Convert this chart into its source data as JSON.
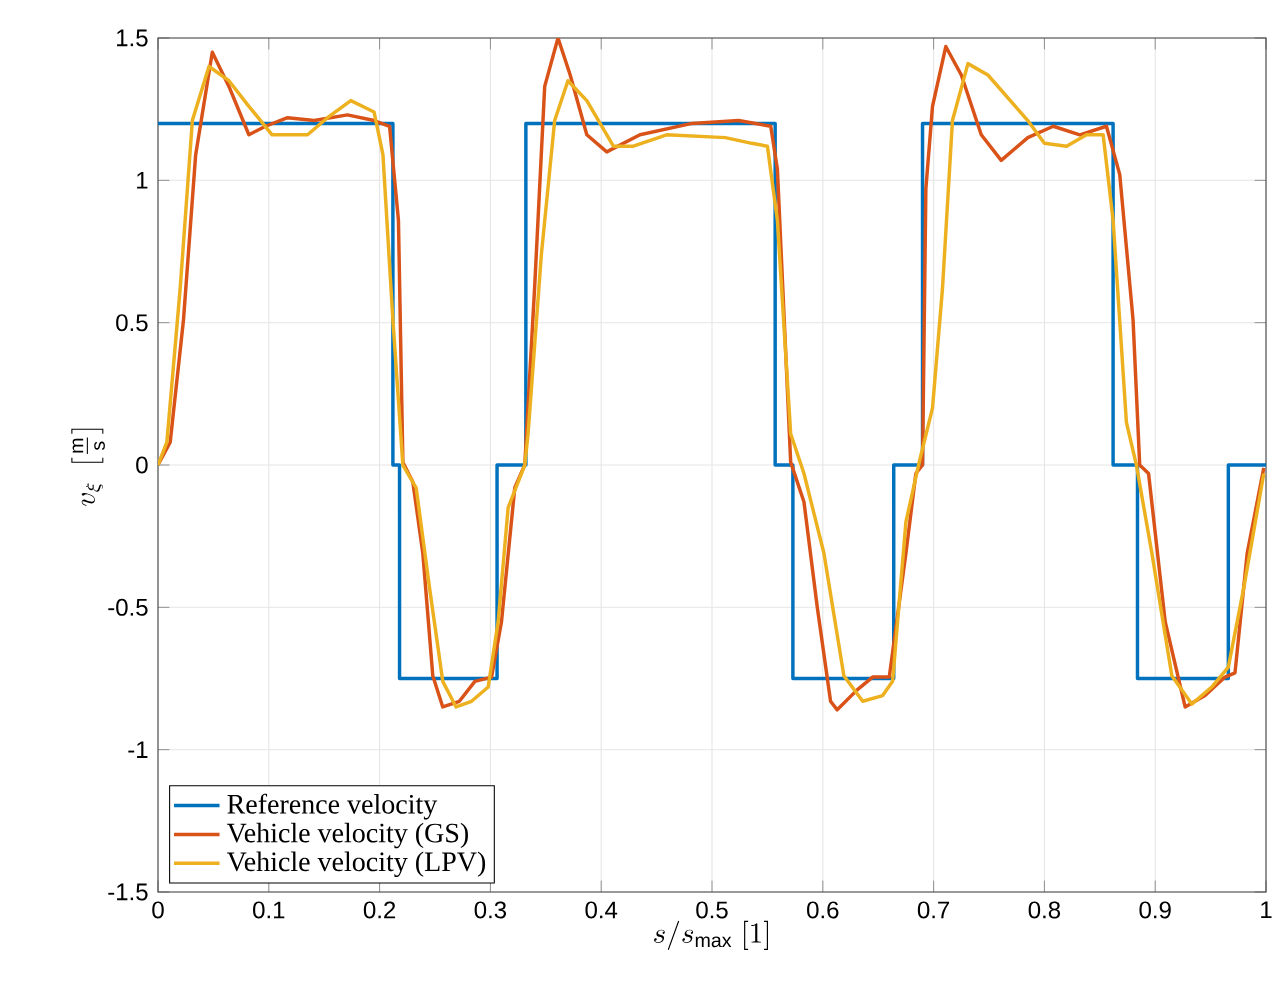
{
  "chart_data": {
    "type": "line",
    "xlabel": "s/s_{\\max}\\ [1]",
    "ylabel": "v_{\\xi}\\ \\left[\\frac{\\mathrm{m}}{\\mathrm{s}}\\right]",
    "xlim": [
      0,
      1
    ],
    "ylim": [
      -1.5,
      1.5
    ],
    "xticks": [
      0,
      0.1,
      0.2,
      0.3,
      0.4,
      0.5,
      0.6,
      0.7,
      0.8,
      0.9,
      1
    ],
    "yticks": [
      -1.5,
      -1,
      -0.5,
      0,
      0.5,
      1,
      1.5
    ],
    "grid": true,
    "legend": "bottom left",
    "series": [
      {
        "name": "Reference velocity",
        "type": "step",
        "color": "#0072bd",
        "x": [
          0,
          0.212,
          0.218,
          0.306,
          0.332,
          0.557,
          0.573,
          0.664,
          0.69,
          0.862,
          0.884,
          0.966,
          1
        ],
        "values": [
          1.2,
          0,
          -0.75,
          0,
          1.2,
          0,
          -0.75,
          0,
          1.2,
          0,
          -0.75,
          0,
          0
        ]
      },
      {
        "name": "Vehicle velocity (GS)",
        "color": "#d95319",
        "x": [
          0,
          0.011,
          0.023,
          0.034,
          0.049,
          0.064,
          0.082,
          0.097,
          0.117,
          0.141,
          0.171,
          0.195,
          0.209,
          0.217,
          0.221,
          0.23,
          0.239,
          0.248,
          0.257,
          0.272,
          0.286,
          0.301,
          0.31,
          0.322,
          0.331,
          0.34,
          0.349,
          0.361,
          0.372,
          0.387,
          0.405,
          0.435,
          0.482,
          0.524,
          0.553,
          0.559,
          0.571,
          0.583,
          0.595,
          0.607,
          0.613,
          0.631,
          0.645,
          0.66,
          0.675,
          0.684,
          0.69,
          0.693,
          0.699,
          0.711,
          0.725,
          0.743,
          0.761,
          0.785,
          0.808,
          0.832,
          0.856,
          0.868,
          0.88,
          0.886,
          0.894,
          0.909,
          0.927,
          0.945,
          0.963,
          0.972,
          0.983,
          0.998
        ],
        "values": [
          0,
          0.08,
          0.51,
          1.09,
          1.45,
          1.33,
          1.16,
          1.19,
          1.22,
          1.21,
          1.23,
          1.21,
          1.19,
          0.86,
          0.01,
          -0.06,
          -0.31,
          -0.74,
          -0.85,
          -0.83,
          -0.76,
          -0.745,
          -0.55,
          -0.08,
          0,
          0.63,
          1.33,
          1.5,
          1.37,
          1.16,
          1.1,
          1.16,
          1.2,
          1.21,
          1.19,
          1.04,
          0.01,
          -0.13,
          -0.5,
          -0.83,
          -0.86,
          -0.79,
          -0.745,
          -0.745,
          -0.31,
          -0.03,
          0,
          0.97,
          1.26,
          1.47,
          1.37,
          1.16,
          1.07,
          1.15,
          1.19,
          1.16,
          1.19,
          1.02,
          0.51,
          0,
          -0.03,
          -0.55,
          -0.85,
          -0.81,
          -0.745,
          -0.73,
          -0.31,
          -0.01
        ]
      },
      {
        "name": "Vehicle velocity (LPV)",
        "color": "#edb120",
        "x": [
          0,
          0.008,
          0.02,
          0.031,
          0.046,
          0.064,
          0.082,
          0.103,
          0.135,
          0.153,
          0.174,
          0.195,
          0.203,
          0.212,
          0.221,
          0.233,
          0.245,
          0.257,
          0.269,
          0.283,
          0.298,
          0.307,
          0.316,
          0.331,
          0.334,
          0.346,
          0.358,
          0.37,
          0.387,
          0.411,
          0.429,
          0.459,
          0.512,
          0.536,
          0.55,
          0.559,
          0.571,
          0.583,
          0.601,
          0.619,
          0.636,
          0.654,
          0.663,
          0.675,
          0.687,
          0.699,
          0.708,
          0.717,
          0.731,
          0.749,
          0.785,
          0.8,
          0.82,
          0.838,
          0.853,
          0.862,
          0.874,
          0.883,
          0.897,
          0.915,
          0.933,
          0.951,
          0.966,
          0.98,
          0.998
        ],
        "values": [
          0,
          0.08,
          0.62,
          1.21,
          1.4,
          1.35,
          1.26,
          1.16,
          1.16,
          1.22,
          1.28,
          1.24,
          1.09,
          0.51,
          0,
          -0.08,
          -0.43,
          -0.76,
          -0.85,
          -0.83,
          -0.78,
          -0.55,
          -0.15,
          0,
          0.11,
          0.74,
          1.21,
          1.35,
          1.28,
          1.12,
          1.12,
          1.16,
          1.15,
          1.13,
          1.12,
          0.86,
          0.11,
          -0.03,
          -0.31,
          -0.74,
          -0.83,
          -0.81,
          -0.76,
          -0.2,
          0.01,
          0.2,
          0.62,
          1.21,
          1.41,
          1.37,
          1.21,
          1.13,
          1.12,
          1.16,
          1.16,
          0.86,
          0.15,
          0,
          -0.31,
          -0.74,
          -0.84,
          -0.78,
          -0.71,
          -0.43,
          -0.03
        ]
      }
    ]
  }
}
